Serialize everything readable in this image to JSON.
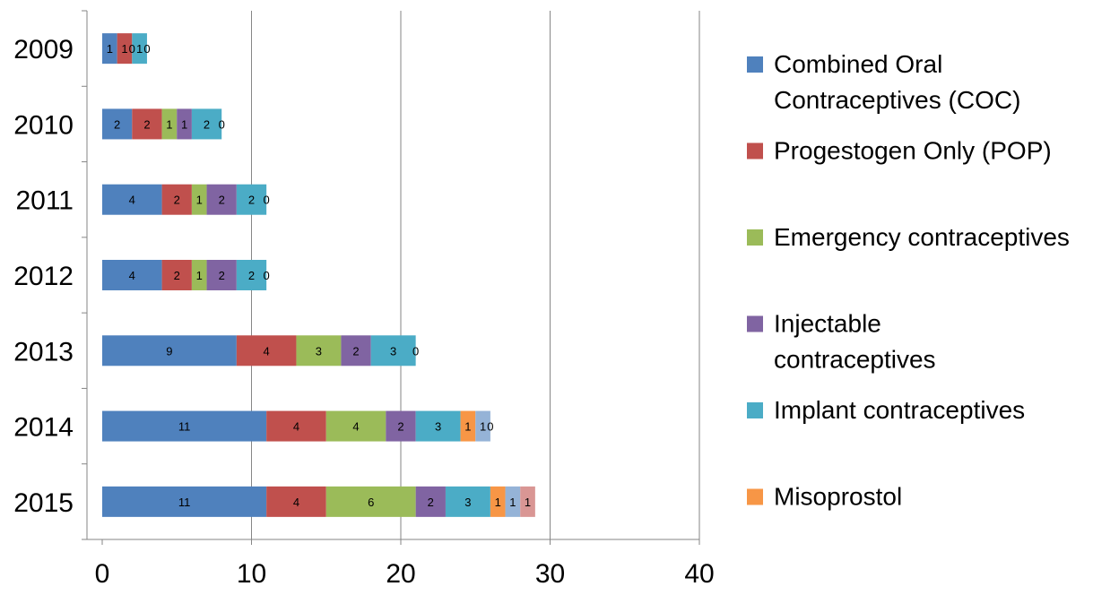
{
  "chart_data": {
    "type": "bar",
    "orientation": "horizontal",
    "stacked": true,
    "title": "",
    "xlabel": "",
    "ylabel": "",
    "xlim": [
      0,
      40
    ],
    "x_ticks": [
      0,
      10,
      20,
      30,
      40
    ],
    "grid": "vertical",
    "legend_position": "right",
    "categories": [
      "2009",
      "2010",
      "2011",
      "2012",
      "2013",
      "2014",
      "2015"
    ],
    "series": [
      {
        "name": "Combined Oral Contraceptives (COC)",
        "color": "#4F81BD",
        "values": [
          1,
          2,
          4,
          4,
          9,
          11,
          11
        ]
      },
      {
        "name": "Progestogen Only (POP)",
        "color": "#C0504D",
        "values": [
          1,
          2,
          2,
          2,
          4,
          4,
          4
        ]
      },
      {
        "name": "Emergency contraceptives",
        "color": "#9BBB59",
        "values": [
          0,
          1,
          1,
          1,
          3,
          4,
          6
        ]
      },
      {
        "name": "Injectable contraceptives",
        "color": "#8064A2",
        "values": [
          0,
          1,
          2,
          2,
          2,
          2,
          2
        ]
      },
      {
        "name": "Implant contraceptives",
        "color": "#4BACC6",
        "values": [
          1,
          2,
          2,
          2,
          3,
          3,
          3
        ]
      },
      {
        "name": "Misoprostol",
        "color": "#F79646",
        "values": [
          0,
          0,
          0,
          0,
          0,
          1,
          1
        ]
      },
      {
        "name": "",
        "color": "#95B3D7",
        "values": [
          0,
          0,
          0,
          0,
          0,
          1,
          1
        ]
      },
      {
        "name": "",
        "color": "#D99694",
        "values": [
          0,
          0,
          0,
          0,
          0,
          0,
          1
        ]
      }
    ],
    "data_labels": [
      [
        "1",
        "1",
        "0",
        "",
        "1",
        "0",
        "",
        ""
      ],
      [
        "2",
        "2",
        "1",
        "1",
        "2",
        "0",
        "",
        ""
      ],
      [
        "4",
        "2",
        "1",
        "2",
        "2",
        "0",
        "",
        ""
      ],
      [
        "4",
        "2",
        "1",
        "2",
        "2",
        "0",
        "",
        ""
      ],
      [
        "9",
        "4",
        "3",
        "2",
        "3",
        "0",
        "",
        ""
      ],
      [
        "11",
        "4",
        "4",
        "2",
        "3",
        "1",
        "1",
        "0"
      ],
      [
        "11",
        "4",
        "6",
        "2",
        "3",
        "1",
        "1",
        "1"
      ]
    ]
  }
}
